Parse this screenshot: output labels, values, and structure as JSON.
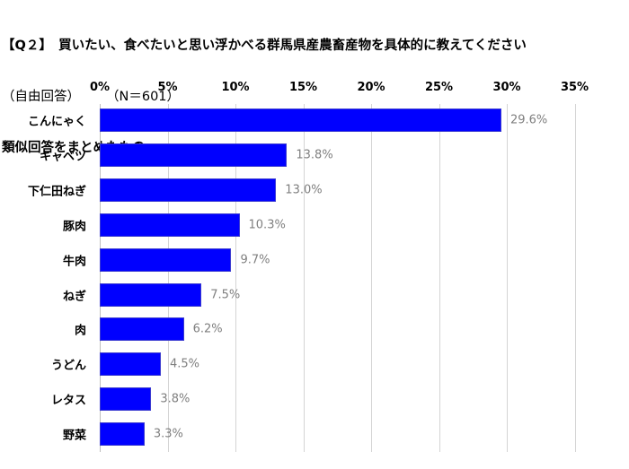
{
  "title": {
    "line1": "【Q２】　買いたい、食べたいと思い浮かべる群馬県産農畜産物を具体的に教えてください",
    "line2": "（自由回答）　　　（N＝601）",
    "line3": "類似回答をまとめたもの"
  },
  "chart_data": {
    "type": "bar",
    "orientation": "horizontal",
    "title": "【Q２】買いたい、食べたいと思い浮かべる群馬県産農畜産物を具体的に教えてください（自由回答）（N＝601）類似回答をまとめたもの",
    "xlabel": "",
    "ylabel": "",
    "x_ticks": [
      "0%",
      "5%",
      "10%",
      "15%",
      "20%",
      "25%",
      "30%",
      "35%"
    ],
    "xlim": [
      0,
      35
    ],
    "grid": true,
    "legend": "none",
    "bar_color": "#0000ff",
    "categories": [
      "こんにゃく",
      "キャベツ",
      "下仁田ねぎ",
      "豚肉",
      "牛肉",
      "ねぎ",
      "肉",
      "うどん",
      "レタス",
      "野菜"
    ],
    "values": [
      29.6,
      13.8,
      13.0,
      10.3,
      9.7,
      7.5,
      6.2,
      4.5,
      3.8,
      3.3
    ],
    "value_labels": [
      "29.6%",
      "13.8%",
      "13.0%",
      "10.3%",
      "9.7%",
      "7.5%",
      "6.2%",
      "4.5%",
      "3.8%",
      "3.3%"
    ]
  }
}
